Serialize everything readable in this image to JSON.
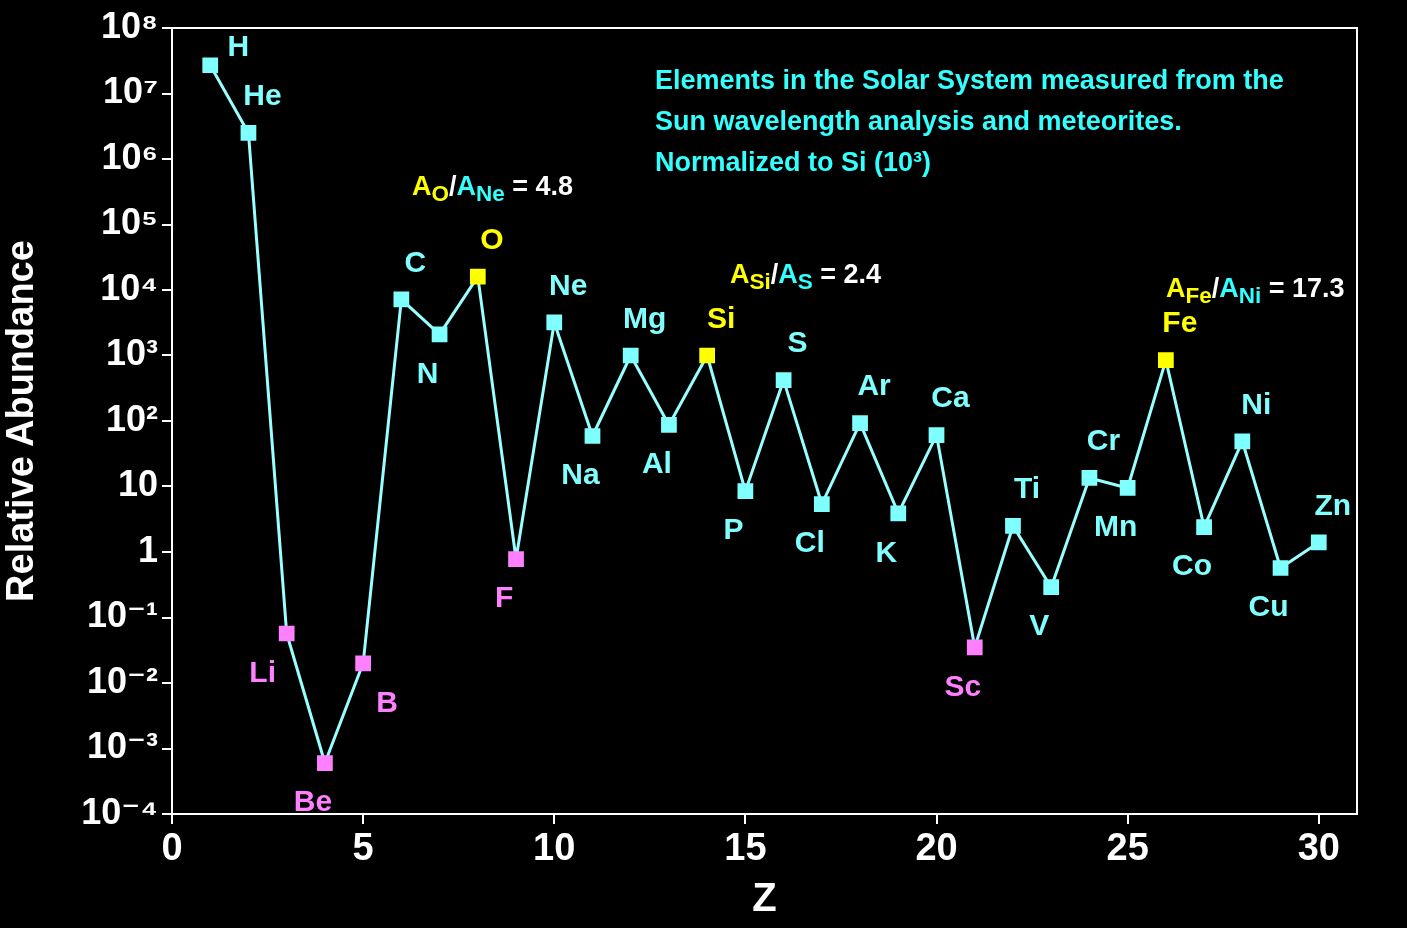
{
  "chart_data": {
    "type": "line",
    "xlabel": "Z",
    "ylabel": "Relative Abundance",
    "x": [
      1,
      2,
      3,
      4,
      5,
      6,
      7,
      8,
      9,
      10,
      11,
      12,
      13,
      14,
      15,
      16,
      17,
      18,
      19,
      20,
      21,
      22,
      23,
      24,
      25,
      26,
      27,
      28,
      29,
      30
    ],
    "series": [
      {
        "color": "#99ffff",
        "values": [
          27000000,
          2500000,
          0.057,
          0.0006,
          0.02,
          7200,
          2100,
          16000,
          0.78,
          3200,
          59,
          1000,
          87,
          1000,
          8.5,
          420,
          5.4,
          93,
          3.9,
          61,
          0.035,
          2.5,
          0.29,
          13.5,
          9.5,
          850,
          2.4,
          49,
          0.57,
          1.4
        ],
        "colors": [
          "#80ffff",
          "#80ffff",
          "#ff80ff",
          "#ff80ff",
          "#ff80ff",
          "#80ffff",
          "#80ffff",
          "#ffff00",
          "#ff80ff",
          "#80ffff",
          "#80ffff",
          "#80ffff",
          "#80ffff",
          "#ffff00",
          "#80ffff",
          "#80ffff",
          "#80ffff",
          "#80ffff",
          "#80ffff",
          "#80ffff",
          "#ff80ff",
          "#80ffff",
          "#80ffff",
          "#80ffff",
          "#80ffff",
          "#ffff00",
          "#80ffff",
          "#80ffff",
          "#80ffff",
          "#80ffff"
        ]
      }
    ],
    "log": "y",
    "xlim": [
      0,
      31
    ],
    "xticks": [
      0,
      5,
      10,
      15,
      20,
      25,
      30
    ],
    "ylim": [
      0.0001,
      100000000
    ],
    "yticks": [
      {
        "value": 100000000,
        "label": "10⁸"
      },
      {
        "value": 10000000,
        "label": "10⁷"
      },
      {
        "value": 1000000,
        "label": "10⁶"
      },
      {
        "value": 100000,
        "label": "10⁵"
      },
      {
        "value": 10000,
        "label": "10⁴"
      },
      {
        "value": 1000,
        "label": "10³"
      },
      {
        "value": 100,
        "label": "10²"
      },
      10,
      1,
      {
        "value": 0.1,
        "label": "10⁻¹"
      },
      {
        "value": 0.01,
        "label": "10⁻²"
      },
      {
        "value": 0.001,
        "label": "10⁻³"
      },
      {
        "value": 0.0001,
        "label": "10⁻⁴"
      }
    ],
    "grid": false,
    "legend": false,
    "marker": "square",
    "line_style": "solid",
    "annotations": [
      "Elements in the Solar System measured from the Sun wavelength analysis and meteorites.",
      "Normalized to Si (10³)",
      "A$_{O}$/A$_{Ne}$ = 4.8",
      "A$_{Si}$/A$_{S}$ = 2.4",
      "A$_{Fe}$/A$_{Ni}$ = 17.3",
      {
        "text": "H",
        "x": 1,
        "y": 27000000
      },
      {
        "text": "He",
        "x": 2,
        "y": 2500000
      },
      {
        "text": "Li",
        "x": 3,
        "y": 0.057
      },
      {
        "text": "Be",
        "x": 4,
        "y": 0.0006
      },
      {
        "text": "B",
        "x": 5,
        "y": 0.02
      },
      {
        "text": "C",
        "x": 6,
        "y": 7200
      },
      {
        "text": "N",
        "x": 7,
        "y": 2100
      },
      {
        "text": "O",
        "x": 8,
        "y": 16000
      },
      {
        "text": "F",
        "x": 9,
        "y": 0.78
      },
      {
        "text": "Ne",
        "x": 10,
        "y": 3200
      },
      {
        "text": "Na",
        "x": 11,
        "y": 59
      },
      {
        "text": "Mg",
        "x": 12,
        "y": 1000
      },
      {
        "text": "Al",
        "x": 13,
        "y": 87
      },
      {
        "text": "Si",
        "x": 14,
        "y": 1000
      },
      {
        "text": "P",
        "x": 15,
        "y": 8.5
      },
      {
        "text": "S",
        "x": 16,
        "y": 420
      },
      {
        "text": "Cl",
        "x": 17,
        "y": 5.4
      },
      {
        "text": "Ar",
        "x": 18,
        "y": 93
      },
      {
        "text": "K",
        "x": 19,
        "y": 3.9
      },
      {
        "text": "Ca",
        "x": 20,
        "y": 61
      },
      {
        "text": "Sc",
        "x": 21,
        "y": 0.035
      },
      {
        "text": "Ti",
        "x": 22,
        "y": 2.5
      },
      {
        "text": "V",
        "x": 23,
        "y": 0.29
      },
      {
        "text": "Cr",
        "x": 24,
        "y": 13.5
      },
      {
        "text": "Mn",
        "x": 25,
        "y": 9.5
      },
      {
        "text": "Fe",
        "x": 26,
        "y": 850
      },
      {
        "text": "Co",
        "x": 27,
        "y": 2.4
      },
      {
        "text": "Ni",
        "x": 28,
        "y": 49
      },
      {
        "text": "Cu",
        "x": 29,
        "y": 0.57
      },
      {
        "text": "Zn",
        "x": 30,
        "y": 1.4
      }
    ]
  }
}
